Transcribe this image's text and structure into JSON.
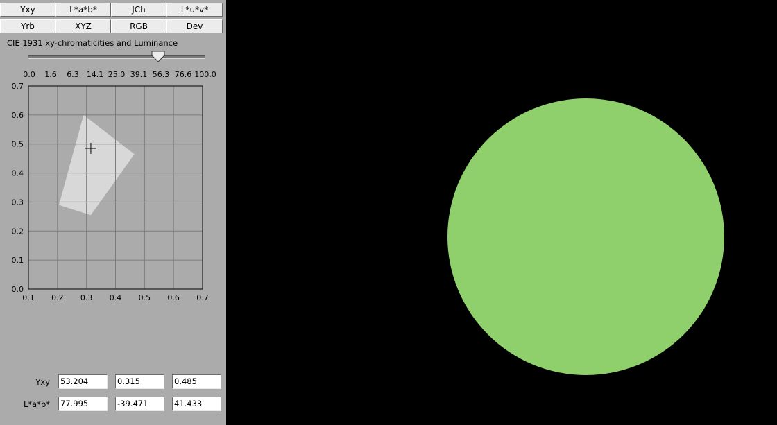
{
  "tabs_row1": [
    "Yxy",
    "L*a*b*",
    "JCh",
    "L*u*v*"
  ],
  "tabs_row2": [
    "Yrb",
    "XYZ",
    "RGB",
    "Dev"
  ],
  "panel_title": "CIE 1931 xy-chromaticities and Luminance",
  "luminance_slider": {
    "ticks": [
      "0.0",
      "1.6",
      "6.3",
      "14.1",
      "25.0",
      "39.1",
      "56.3",
      "76.6",
      "100.0"
    ],
    "value": 53.204
  },
  "chart_data": {
    "type": "scatter",
    "title": "",
    "xlabel": "",
    "ylabel": "",
    "x_ticks": [
      "0.1",
      "0.2",
      "0.3",
      "0.4",
      "0.5",
      "0.6",
      "0.7"
    ],
    "y_ticks": [
      "0.0",
      "0.1",
      "0.2",
      "0.3",
      "0.4",
      "0.5",
      "0.6",
      "0.7"
    ],
    "xlim": [
      0.1,
      0.7
    ],
    "ylim": [
      0.0,
      0.7
    ],
    "grid": true,
    "gamut_polygon": [
      [
        0.29,
        0.6
      ],
      [
        0.465,
        0.465
      ],
      [
        0.315,
        0.255
      ],
      [
        0.205,
        0.29
      ]
    ],
    "marker": {
      "x": 0.315,
      "y": 0.485
    },
    "gamut_color": "#d8d8d8",
    "grid_color": "#7c7c7c"
  },
  "readouts": [
    {
      "label": "Yxy",
      "values": [
        "53.204",
        "0.315",
        "0.485"
      ]
    },
    {
      "label": "L*a*b*",
      "values": [
        "77.995",
        "-39.471",
        "41.433"
      ]
    }
  ],
  "swatch_color": "#8fd06c",
  "colors": {
    "panel_bg": "#ababab",
    "background": "#000000"
  }
}
